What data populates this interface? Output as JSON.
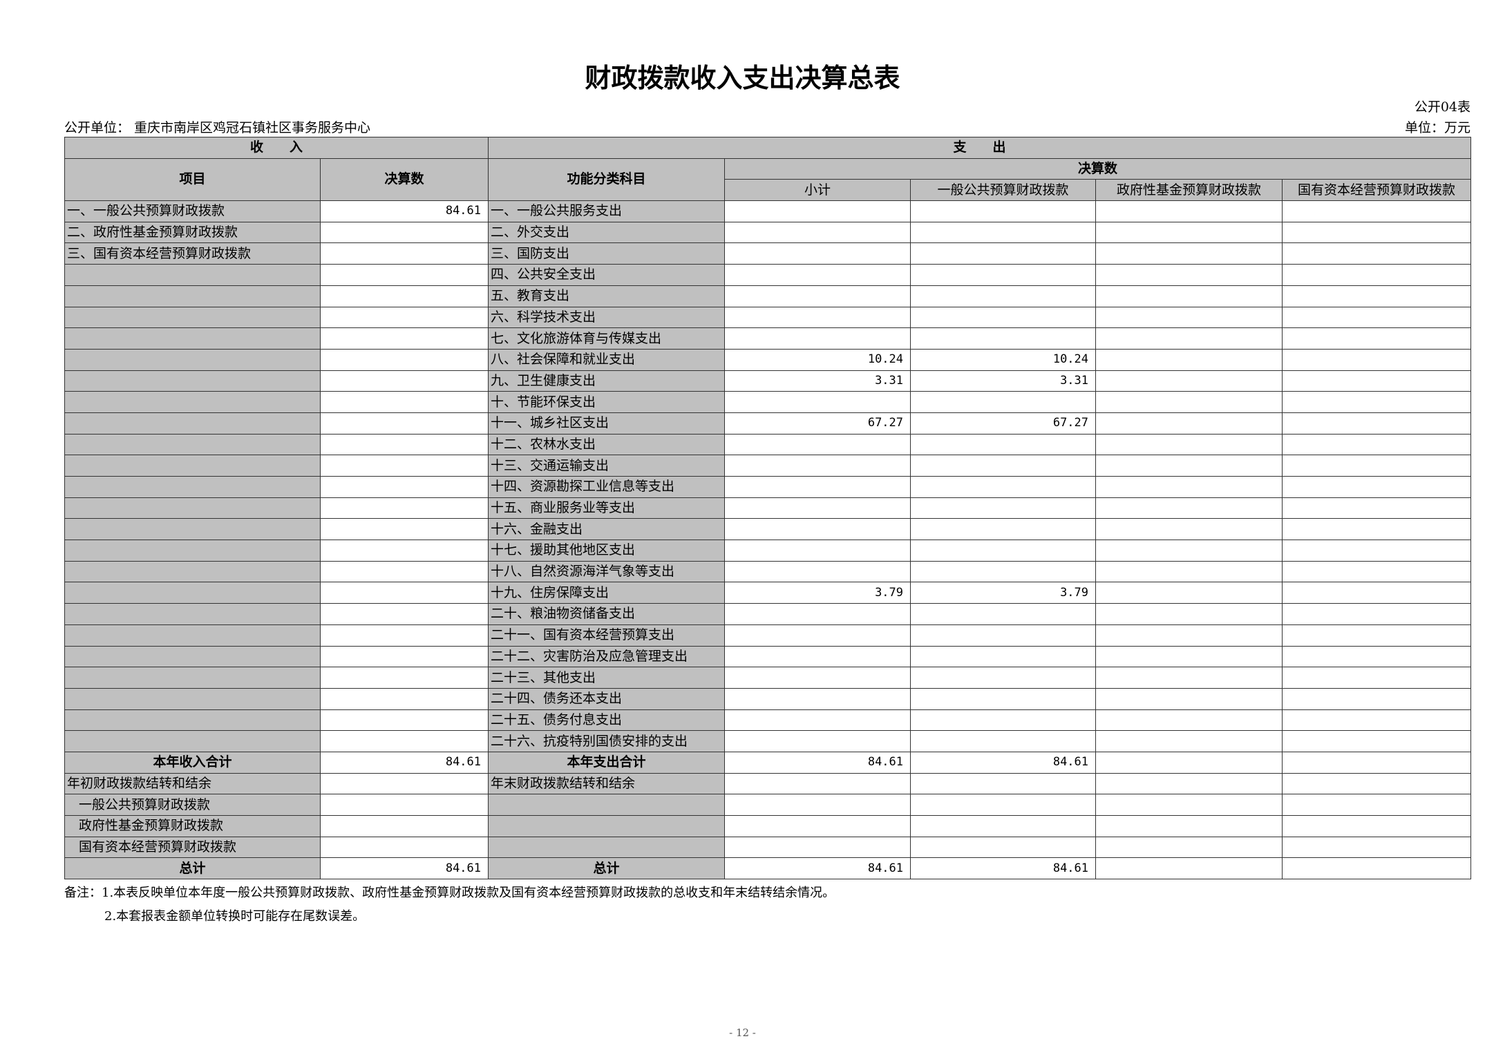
{
  "title": "财政拨款收入支出决算总表",
  "form_no": "公开04表",
  "unit": "单位：万元",
  "org": "公开单位：  重庆市南岸区鸡冠石镇社区事务服务中心",
  "headers": {
    "income": "收　　入",
    "expense": "支　　出",
    "item": "项目",
    "amount": "决算数",
    "func_class": "功能分类科目",
    "final_amount": "决算数",
    "subtotal": "小计",
    "general": "一般公共预算财政拨款",
    "gov_fund": "政府性基金预算财政拨款",
    "state_capital": "国有资本经营预算财政拨款"
  },
  "rows": [
    [
      "一、一般公共预算财政拨款",
      "84.61",
      "一、一般公共服务支出",
      "",
      "",
      "",
      ""
    ],
    [
      "二、政府性基金预算财政拨款",
      "",
      "二、外交支出",
      "",
      "",
      "",
      ""
    ],
    [
      "三、国有资本经营预算财政拨款",
      "",
      "三、国防支出",
      "",
      "",
      "",
      ""
    ],
    [
      "",
      "",
      "四、公共安全支出",
      "",
      "",
      "",
      ""
    ],
    [
      "",
      "",
      "五、教育支出",
      "",
      "",
      "",
      ""
    ],
    [
      "",
      "",
      "六、科学技术支出",
      "",
      "",
      "",
      ""
    ],
    [
      "",
      "",
      "七、文化旅游体育与传媒支出",
      "",
      "",
      "",
      ""
    ],
    [
      "",
      "",
      "八、社会保障和就业支出",
      "10.24",
      "10.24",
      "",
      ""
    ],
    [
      "",
      "",
      "九、卫生健康支出",
      "3.31",
      "3.31",
      "",
      ""
    ],
    [
      "",
      "",
      "十、节能环保支出",
      "",
      "",
      "",
      ""
    ],
    [
      "",
      "",
      "十一、城乡社区支出",
      "67.27",
      "67.27",
      "",
      ""
    ],
    [
      "",
      "",
      "十二、农林水支出",
      "",
      "",
      "",
      ""
    ],
    [
      "",
      "",
      "十三、交通运输支出",
      "",
      "",
      "",
      ""
    ],
    [
      "",
      "",
      "十四、资源勘探工业信息等支出",
      "",
      "",
      "",
      ""
    ],
    [
      "",
      "",
      "十五、商业服务业等支出",
      "",
      "",
      "",
      ""
    ],
    [
      "",
      "",
      "十六、金融支出",
      "",
      "",
      "",
      ""
    ],
    [
      "",
      "",
      "十七、援助其他地区支出",
      "",
      "",
      "",
      ""
    ],
    [
      "",
      "",
      "十八、自然资源海洋气象等支出",
      "",
      "",
      "",
      ""
    ],
    [
      "",
      "",
      "十九、住房保障支出",
      "3.79",
      "3.79",
      "",
      ""
    ],
    [
      "",
      "",
      "二十、粮油物资储备支出",
      "",
      "",
      "",
      ""
    ],
    [
      "",
      "",
      "二十一、国有资本经营预算支出",
      "",
      "",
      "",
      ""
    ],
    [
      "",
      "",
      "二十二、灾害防治及应急管理支出",
      "",
      "",
      "",
      ""
    ],
    [
      "",
      "",
      "二十三、其他支出",
      "",
      "",
      "",
      ""
    ],
    [
      "",
      "",
      "二十四、债务还本支出",
      "",
      "",
      "",
      ""
    ],
    [
      "",
      "",
      "二十五、债务付息支出",
      "",
      "",
      "",
      ""
    ],
    [
      "",
      "",
      "二十六、抗疫特别国债安排的支出",
      "",
      "",
      "",
      ""
    ]
  ],
  "summary_rows": [
    {
      "kind": "total",
      "cells": [
        "本年收入合计",
        "84.61",
        "本年支出合计",
        "84.61",
        "84.61",
        "",
        ""
      ]
    },
    {
      "kind": "plain",
      "cells": [
        "年初财政拨款结转和结余",
        "",
        "年末财政拨款结转和结余",
        "",
        "",
        "",
        ""
      ]
    },
    {
      "kind": "indent",
      "cells": [
        "一般公共预算财政拨款",
        "",
        "",
        "",
        "",
        "",
        ""
      ]
    },
    {
      "kind": "indent",
      "cells": [
        "政府性基金预算财政拨款",
        "",
        "",
        "",
        "",
        "",
        ""
      ]
    },
    {
      "kind": "indent",
      "cells": [
        "国有资本经营预算财政拨款",
        "",
        "",
        "",
        "",
        "",
        ""
      ]
    },
    {
      "kind": "total",
      "cells": [
        "总计",
        "84.61",
        "总计",
        "84.61",
        "84.61",
        "",
        ""
      ]
    }
  ],
  "notes": [
    "备注：1.本表反映单位本年度一般公共预算财政拨款、政府性基金预算财政拨款及国有资本经营预算财政拨款的总收支和年末结转结余情况。",
    "2.本套报表金额单位转换时可能存在尾数误差。"
  ],
  "page_number": "- 12 -",
  "colors": {
    "header_fill": "#c0c0c0",
    "border": "#333333"
  }
}
